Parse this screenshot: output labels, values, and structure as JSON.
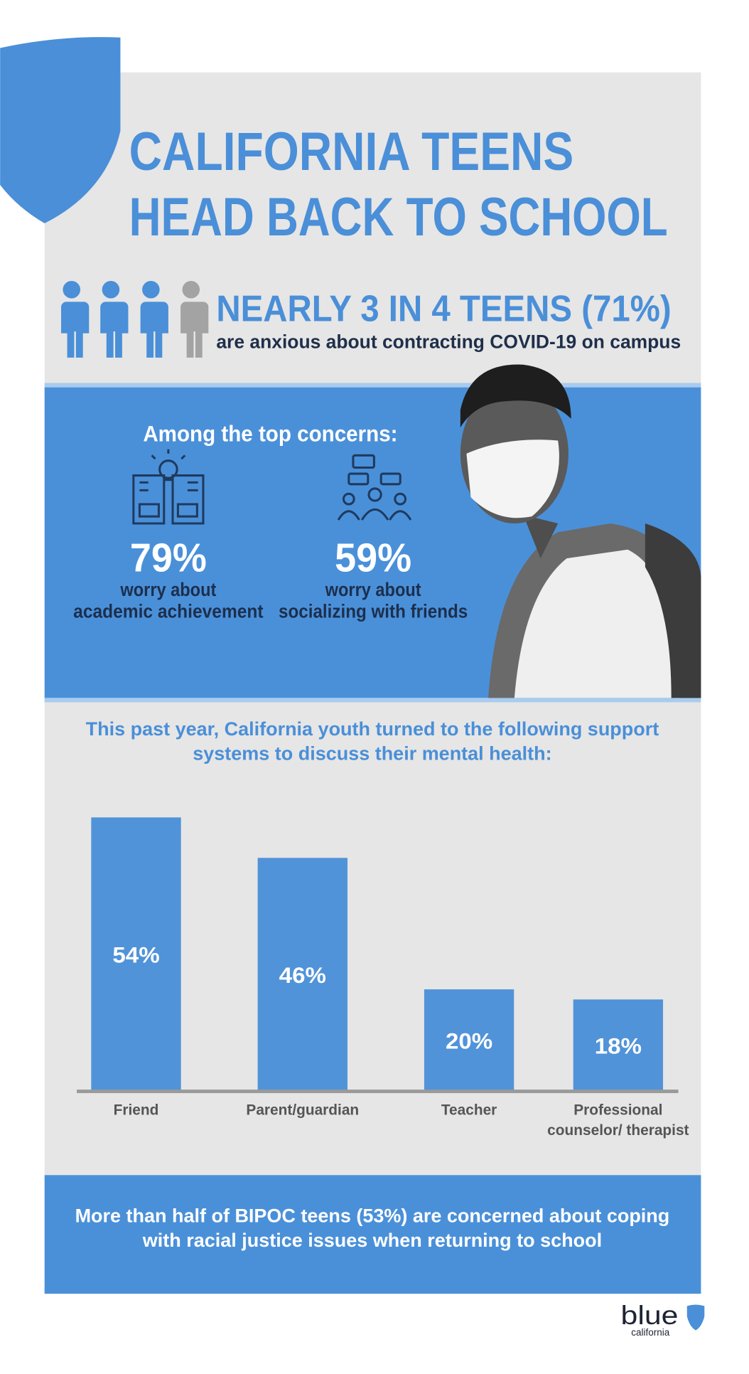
{
  "title": [
    "CALIFORNIA TEENS",
    "HEAD BACK TO SCHOOL"
  ],
  "stat": {
    "headline": "NEARLY 3 IN 4 TEENS (71%)",
    "text": "are anxious about contracting COVID-19 on campus"
  },
  "concerns": {
    "heading": "Among the top concerns:",
    "items": [
      {
        "value": "79%",
        "lines": [
          "worry about",
          "academic achievement"
        ]
      },
      {
        "value": "59%",
        "lines": [
          "worry about",
          "socializing with friends"
        ]
      }
    ]
  },
  "chart_data": {
    "type": "bar",
    "title": "This past year, California youth turned to the following support systems to discuss their mental health:",
    "categories": [
      "Friend",
      "Parent/guardian",
      "Teacher",
      "Professional counselor/ therapist"
    ],
    "values": [
      54,
      46,
      20,
      18
    ],
    "value_labels": [
      "54%",
      "46%",
      "20%",
      "18%"
    ],
    "color": "#5193d8"
  },
  "footer": "More than half of BIPOC teens (53%) are concerned about coping with racial justice issues when returning to school",
  "brand": {
    "name": "blue",
    "sub": "california"
  }
}
